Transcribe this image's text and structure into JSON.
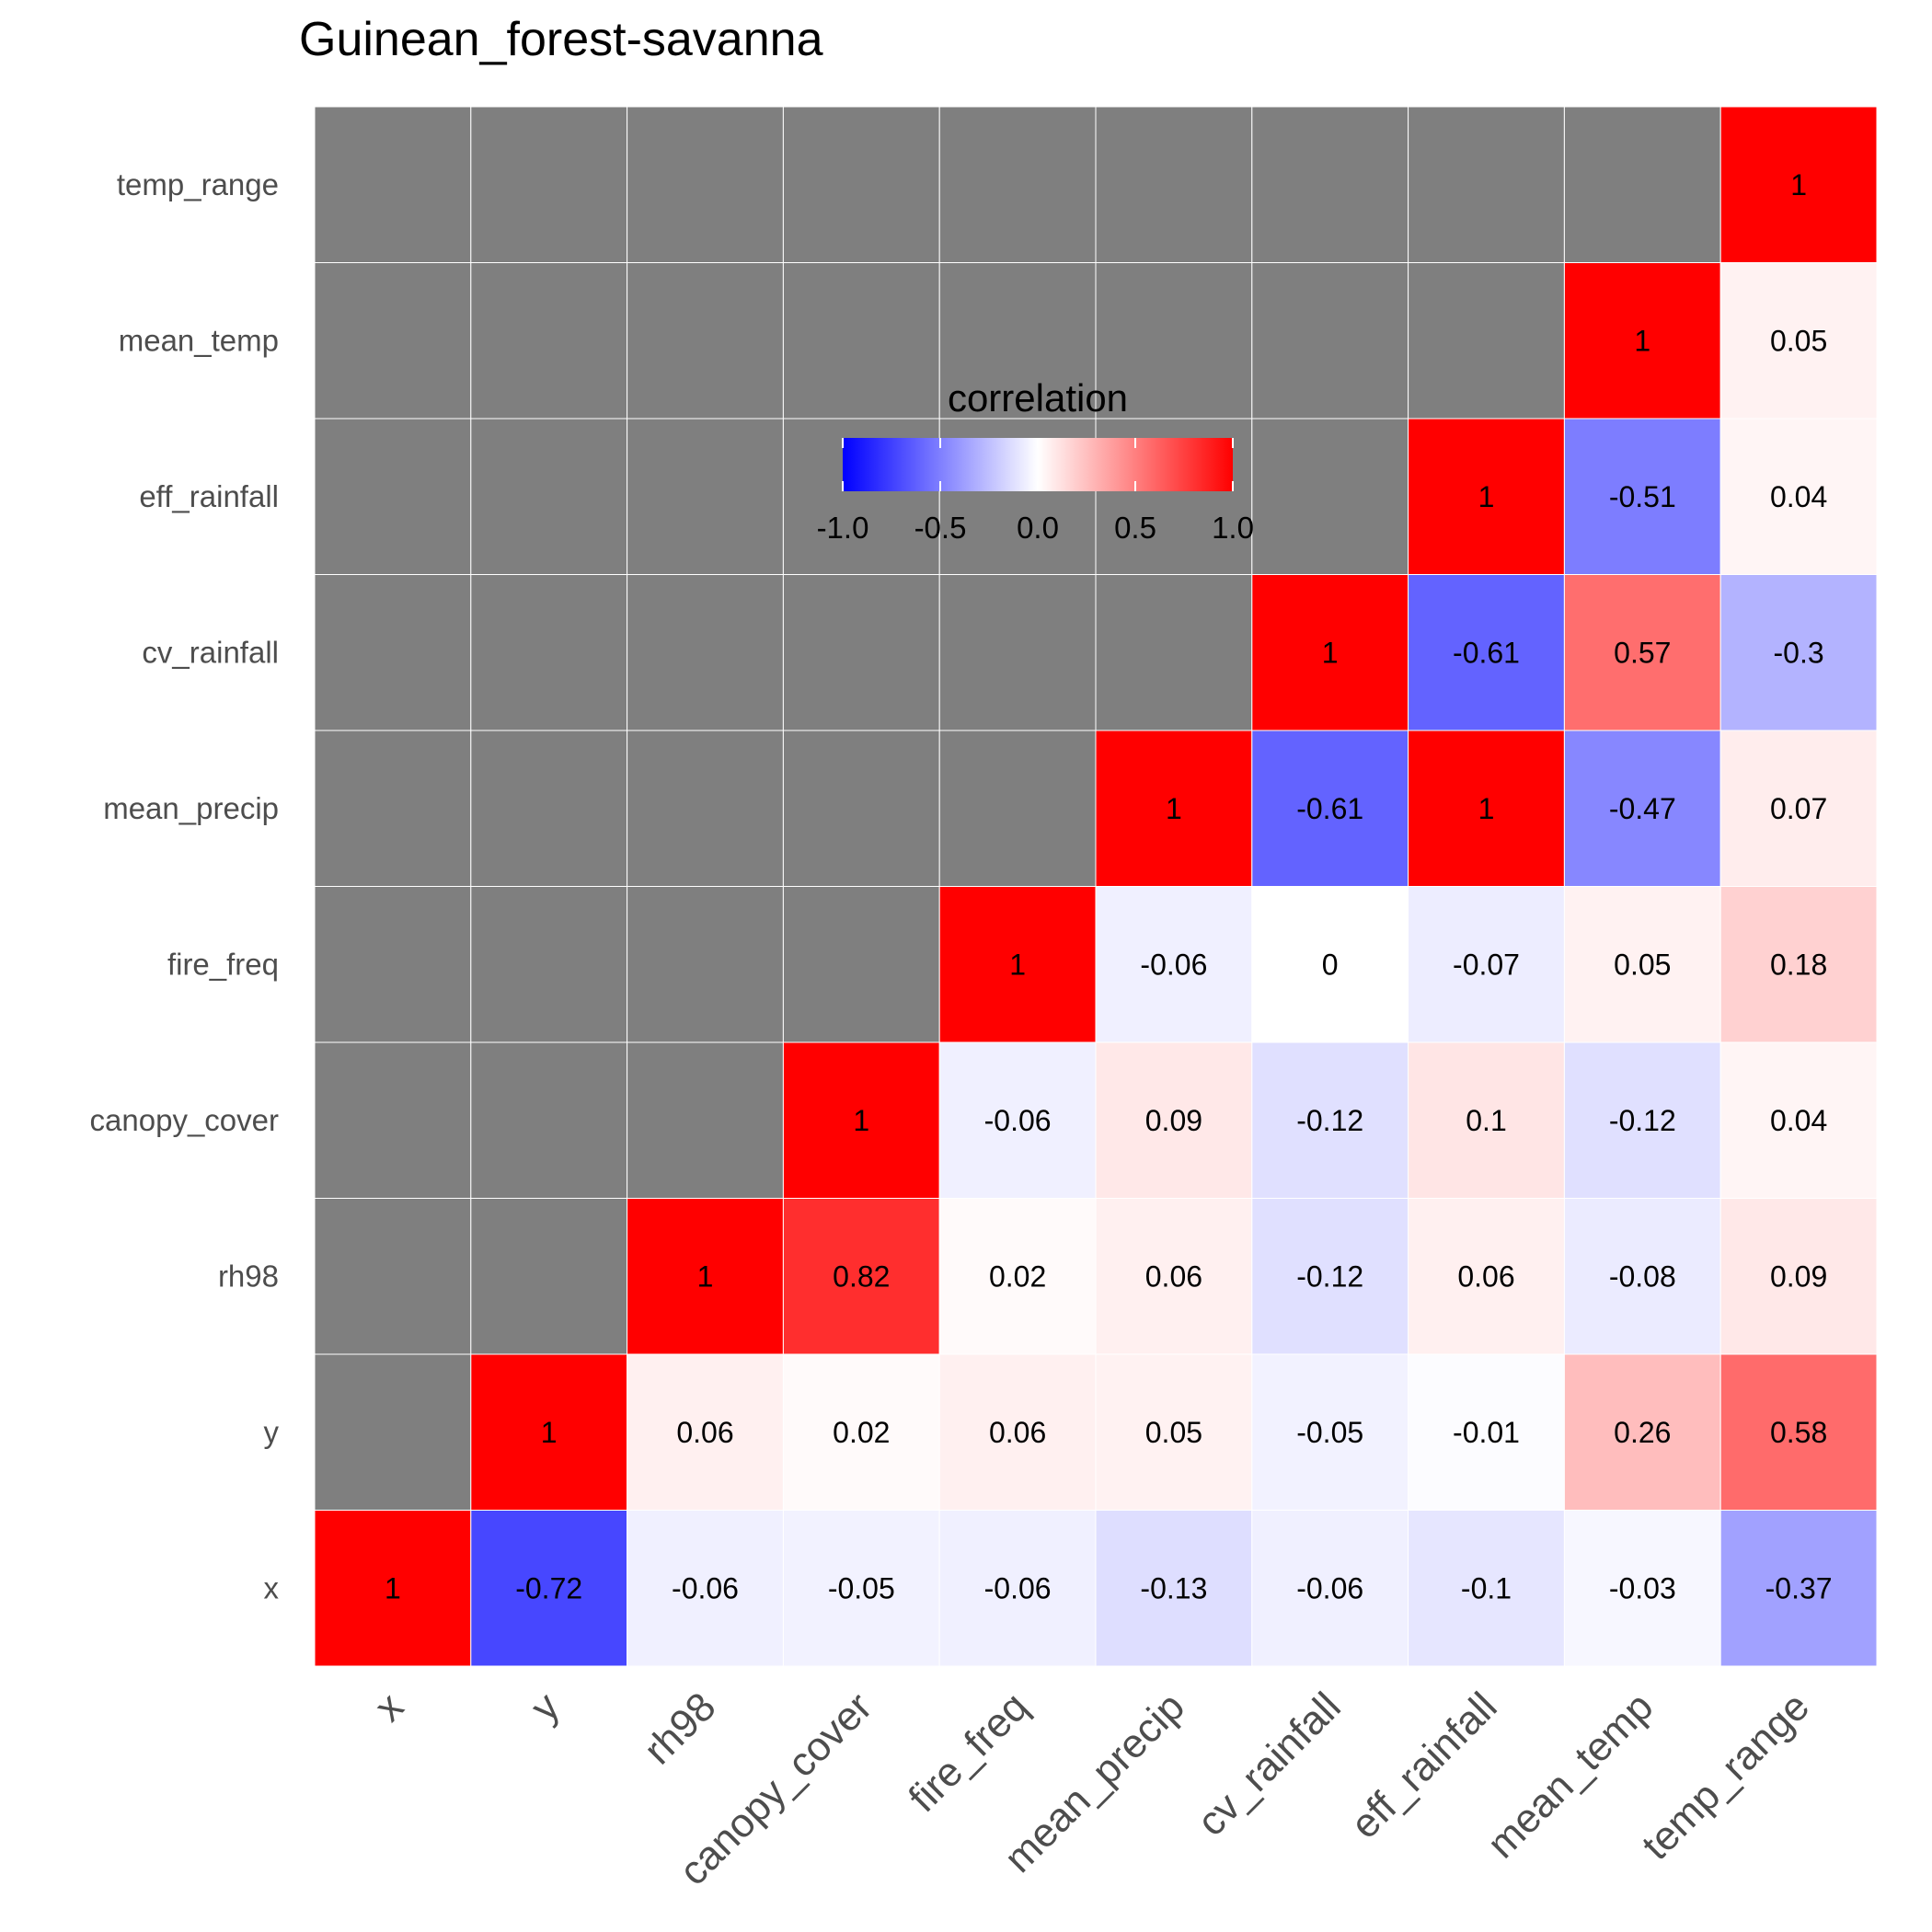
{
  "chart_data": {
    "type": "heatmap",
    "title": "Guinean_forest-savanna",
    "variables": [
      "x",
      "y",
      "rh98",
      "canopy_cover",
      "fire_freq",
      "mean_precip",
      "cv_rainfall",
      "eff_rainfall",
      "mean_temp",
      "temp_range"
    ],
    "matrix": [
      [
        1,
        -0.72,
        -0.06,
        -0.05,
        -0.06,
        -0.13,
        -0.06,
        -0.1,
        -0.03,
        -0.37
      ],
      [
        null,
        1,
        0.06,
        0.02,
        0.06,
        0.05,
        -0.05,
        -0.01,
        0.26,
        0.58
      ],
      [
        null,
        null,
        1,
        0.82,
        0.02,
        0.06,
        -0.12,
        0.06,
        -0.08,
        0.09
      ],
      [
        null,
        null,
        null,
        1,
        -0.06,
        0.09,
        -0.12,
        0.1,
        -0.12,
        0.04
      ],
      [
        null,
        null,
        null,
        null,
        1,
        -0.06,
        0,
        -0.07,
        0.05,
        0.18
      ],
      [
        null,
        null,
        null,
        null,
        null,
        1,
        -0.61,
        1,
        -0.47,
        0.07
      ],
      [
        null,
        null,
        null,
        null,
        null,
        null,
        1,
        -0.61,
        0.57,
        -0.3
      ],
      [
        null,
        null,
        null,
        null,
        null,
        null,
        null,
        1,
        -0.51,
        0.04
      ],
      [
        null,
        null,
        null,
        null,
        null,
        null,
        null,
        null,
        1,
        0.05
      ],
      [
        null,
        null,
        null,
        null,
        null,
        null,
        null,
        null,
        null,
        1
      ]
    ],
    "color_scale": {
      "low": "#0000ff",
      "mid": "#ffffff",
      "high": "#ff0000",
      "missing": "#7f7f7f",
      "limits": [
        -1,
        1
      ]
    },
    "legend": {
      "title": "correlation",
      "ticks": [
        "-1.0",
        "-0.5",
        "0.0",
        "0.5",
        "1.0"
      ],
      "placement": "inside-top-center"
    }
  }
}
